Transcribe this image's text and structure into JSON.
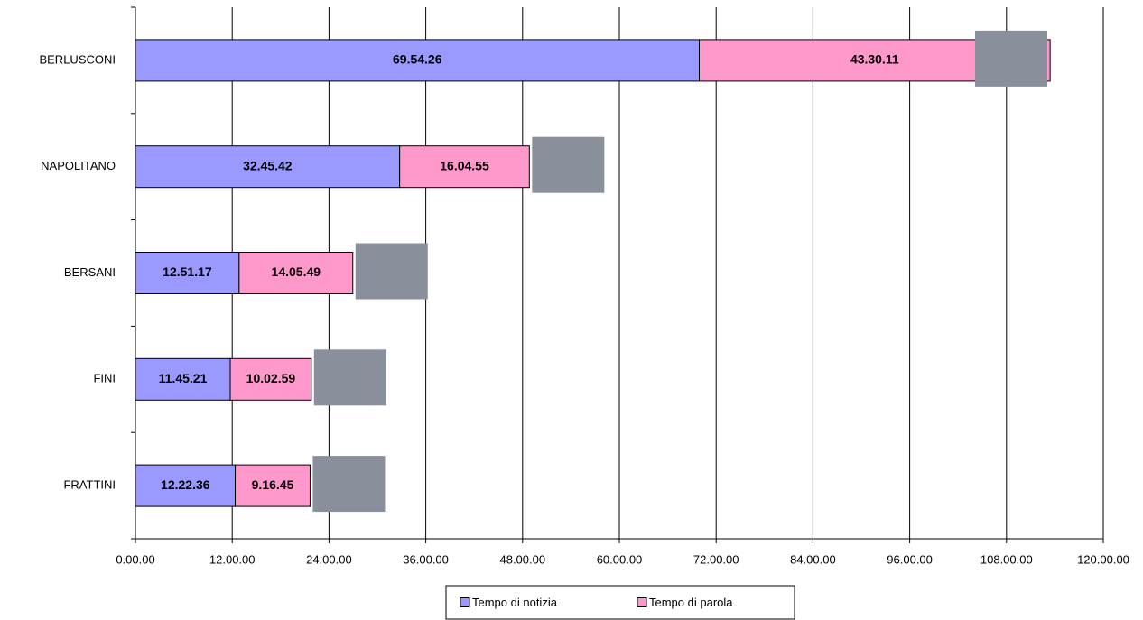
{
  "chart_data": {
    "type": "stacked-bar-horizontal",
    "categories": [
      "BERLUSCONI",
      "NAPOLITANO",
      "BERSANI",
      "FINI",
      "FRATTINI"
    ],
    "series": [
      {
        "name": "Tempo di notizia",
        "color": "#9999ff",
        "values": [
          69.90722,
          32.76167,
          12.85472,
          11.75583,
          12.37667
        ],
        "value_labels": [
          "69.54.26",
          "32.45.42",
          "12.51.17",
          "11.45.21",
          "12.22.36"
        ]
      },
      {
        "name": "Tempo di parola",
        "color": "#ff99cc",
        "values": [
          43.50306,
          16.08194,
          14.09694,
          10.04972,
          9.27917
        ],
        "value_labels": [
          "43.30.11",
          "16.04.55",
          "14.05.49",
          "10.02.59",
          "9.16.45"
        ]
      }
    ],
    "xlim": [
      0,
      120
    ],
    "xticks": [
      {
        "value": 0,
        "label": "0.00.00"
      },
      {
        "value": 12,
        "label": "12.00.00"
      },
      {
        "value": 24,
        "label": "24.00.00"
      },
      {
        "value": 36,
        "label": "36.00.00"
      },
      {
        "value": 48,
        "label": "48.00.00"
      },
      {
        "value": 60,
        "label": "60.00.00"
      },
      {
        "value": 72,
        "label": "72.00.00"
      },
      {
        "value": 84,
        "label": "84.00.00"
      },
      {
        "value": 96,
        "label": "96.00.00"
      },
      {
        "value": 108,
        "label": "108.00.00"
      },
      {
        "value": 120,
        "label": "120.00.00"
      }
    ],
    "grid": true,
    "legend": "bottom"
  }
}
